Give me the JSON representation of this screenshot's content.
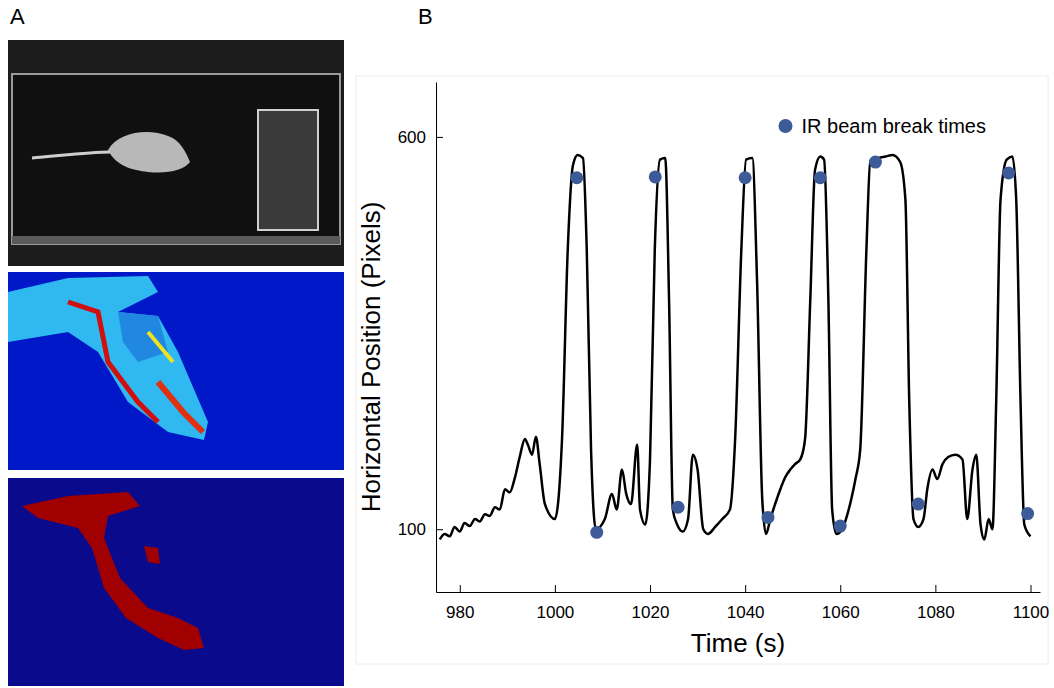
{
  "panel_labels": [
    "A",
    "B"
  ],
  "chart_data": {
    "type": "line",
    "x_label": "Time (s)",
    "y_label": "Horizontal Position (Pixels)",
    "xlim": [
      975,
      1102
    ],
    "ylim": [
      20,
      670
    ],
    "xticks": [
      980,
      1000,
      1020,
      1040,
      1060,
      1080,
      1100
    ],
    "yticks": [
      100,
      600
    ],
    "grid": false,
    "legend": "top-right",
    "series": [
      {
        "type": "line",
        "color": "#000000",
        "line_style": "solid",
        "x": [
          975.8,
          976.8,
          977.9,
          978.9,
          980,
          981,
          982.1,
          983.2,
          984.2,
          985.3,
          986.3,
          987.4,
          988.4,
          989.5,
          990.5,
          991.6,
          992.6,
          993.7,
          994.3,
          995.2,
          996,
          996.8,
          997.9,
          1000,
          1001.5,
          1002.7,
          1003.8,
          1004.8,
          1005.9,
          1006.7,
          1007.6,
          1008.6,
          1010.5,
          1012,
          1013,
          1014.1,
          1015,
          1016,
          1017.3,
          1017.9,
          1019,
          1020,
          1021,
          1022.1,
          1023.2,
          1024,
          1024.8,
          1025.7,
          1026.9,
          1028,
          1029,
          1030,
          1031.2,
          1032.2,
          1033.7,
          1035.2,
          1036.8,
          1037.9,
          1039.2,
          1040.2,
          1041.5,
          1042.5,
          1043.6,
          1044.4,
          1045.3,
          1046.3,
          1047.4,
          1048.4,
          1049.5,
          1050.5,
          1051.6,
          1052.6,
          1053.7,
          1054.7,
          1055.8,
          1056.6,
          1057.5,
          1058.3,
          1059.2,
          1060.4,
          1061.5,
          1062.3,
          1063.2,
          1064.2,
          1065.5,
          1066.3,
          1068,
          1069.5,
          1071,
          1072.6,
          1073.7,
          1074.5,
          1075.4,
          1076.4,
          1077.5,
          1078.3,
          1079.4,
          1080.4,
          1081.5,
          1082.7,
          1084.2,
          1085.7,
          1086.7,
          1087.8,
          1088.6,
          1089.5,
          1090.3,
          1091.2,
          1092,
          1092.8,
          1093.7,
          1095,
          1096.2,
          1097,
          1097.9,
          1098.7,
          1100
        ],
        "values": [
          87,
          94,
          91,
          103,
          97,
          108,
          104,
          113,
          110,
          119,
          117,
          128,
          125,
          151,
          147,
          166,
          192,
          215,
          208,
          195,
          218,
          183,
          132,
          113,
          215,
          456,
          564,
          577,
          573,
          456,
          202,
          100,
          113,
          145,
          125,
          176,
          145,
          132,
          208,
          125,
          106,
          189,
          456,
          571,
          573,
          393,
          125,
          106,
          97,
          113,
          195,
          176,
          100,
          94,
          103,
          113,
          125,
          215,
          456,
          571,
          573,
          418,
          138,
          94,
          113,
          132,
          151,
          166,
          176,
          183,
          189,
          215,
          393,
          558,
          575,
          571,
          393,
          125,
          94,
          100,
          119,
          138,
          164,
          202,
          456,
          568,
          573,
          575,
          577,
          568,
          520,
          265,
          113,
          103,
          113,
          151,
          176,
          164,
          183,
          192,
          195,
          189,
          113,
          176,
          195,
          106,
          87,
          113,
          100,
          265,
          520,
          571,
          575,
          520,
          265,
          106,
          91
        ]
      },
      {
        "type": "scatter",
        "name": "IR beam break times",
        "color": "#3d5a99",
        "marker": "circle",
        "x": [
          1004.6,
          1008.8,
          1021.1,
          1025.9,
          1040,
          1044.8,
          1055.8,
          1060,
          1067.4,
          1076.4,
          1095.4,
          1099.4
        ],
        "values": [
          548,
          96,
          549,
          128,
          548,
          115,
          548,
          104,
          568,
          132,
          554,
          120
        ]
      }
    ]
  }
}
